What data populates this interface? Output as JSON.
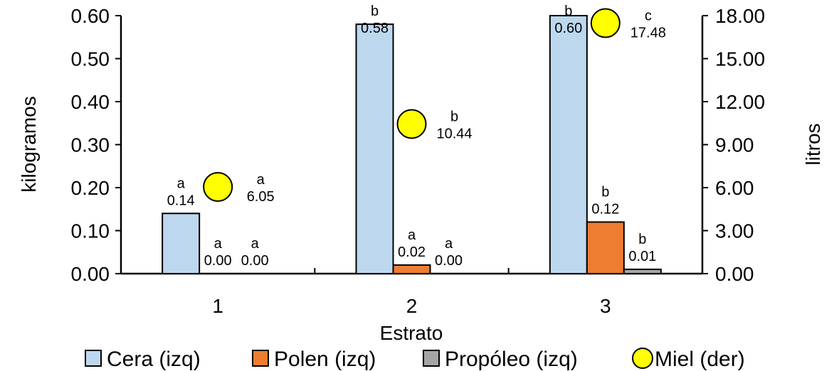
{
  "chart_data": {
    "type": "bar",
    "xlabel": "Estrato",
    "ylabel": "kilogramos",
    "y2label": "litros",
    "categories": [
      "1",
      "2",
      "3"
    ],
    "ylim": [
      0,
      0.6
    ],
    "y2lim": [
      0,
      18
    ],
    "yticks": [
      "0.00",
      "0.10",
      "0.20",
      "0.30",
      "0.40",
      "0.50",
      "0.60"
    ],
    "y2ticks": [
      "0.00",
      "3.00",
      "6.00",
      "9.00",
      "12.00",
      "15.00",
      "18.00"
    ],
    "series": [
      {
        "name": "Cera (izq)",
        "axis": "left",
        "kind": "bar",
        "color": "#bdd7ee",
        "values": [
          0.14,
          0.58,
          0.6
        ],
        "labels": [
          "0.14",
          "0.58",
          "0.60"
        ],
        "letters": [
          "a",
          "b",
          "b"
        ]
      },
      {
        "name": "Polen (izq)",
        "axis": "left",
        "kind": "bar",
        "color": "#ed7d31",
        "values": [
          0.0,
          0.02,
          0.12
        ],
        "labels": [
          "0.00",
          "0.02",
          "0.12"
        ],
        "letters": [
          "a",
          "a",
          "b"
        ]
      },
      {
        "name": "Propóleo (izq)",
        "axis": "left",
        "kind": "bar",
        "color": "#a5a5a5",
        "values": [
          0.0,
          0.0,
          0.01
        ],
        "labels": [
          "0.00",
          "0.00",
          "0.01"
        ],
        "letters": [
          "a",
          "a",
          "b"
        ]
      },
      {
        "name": "Miel (der)",
        "axis": "right",
        "kind": "marker",
        "color": "#ffff00",
        "values": [
          6.05,
          10.44,
          17.48
        ],
        "labels": [
          "6.05",
          "10.44",
          "17.48"
        ],
        "letters": [
          "a",
          "b",
          "c"
        ]
      }
    ],
    "legend_position": "bottom",
    "grid": false
  }
}
